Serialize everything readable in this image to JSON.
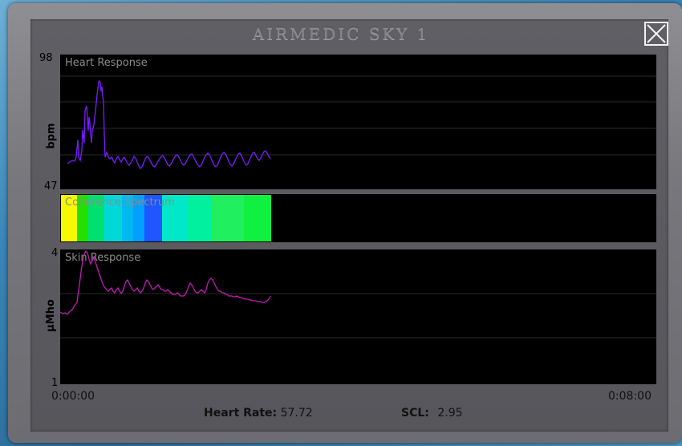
{
  "window": {
    "title": "AIRMEDIC SKY 1",
    "close_icon": "close-icon"
  },
  "heart": {
    "label": "Heart Response",
    "unit": "bpm",
    "y_max": "98",
    "y_min": "47"
  },
  "coherence": {
    "label": "Coherence Spectrum",
    "segments": [
      "#f8f800",
      "#22e000",
      "#00e070",
      "#00d8d8",
      "#00b8f0",
      "#00a0ff",
      "#1e56ff",
      "#00e8c8",
      "#00f0a0",
      "#20f060",
      "#10f040"
    ]
  },
  "skin": {
    "label": "Skin Response",
    "unit": "µMho",
    "y_max": "4",
    "y_min": "1"
  },
  "time_axis": {
    "start": "0:00:00",
    "end": "0:08:00"
  },
  "readouts": {
    "heart_rate_label": "Heart Rate:",
    "heart_rate_value": "57.72",
    "scl_label": "SCL:",
    "scl_value": "2.95"
  },
  "colors": {
    "heart_trace": "#7a1cff",
    "skin_trace": "#c21ab8",
    "panel_bg": "#000000"
  }
}
